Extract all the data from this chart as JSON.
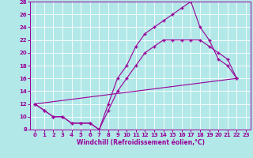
{
  "xlabel": "Windchill (Refroidissement éolien,°C)",
  "line_color": "#990099",
  "bg_color": "#b2e8e8",
  "grid_color": "#ffffff",
  "xlim": [
    -0.5,
    23.5
  ],
  "ylim": [
    8,
    28
  ],
  "xticks": [
    0,
    1,
    2,
    3,
    4,
    5,
    6,
    7,
    8,
    9,
    10,
    11,
    12,
    13,
    14,
    15,
    16,
    17,
    18,
    19,
    20,
    21,
    22,
    23
  ],
  "yticks": [
    8,
    10,
    12,
    14,
    16,
    18,
    20,
    22,
    24,
    26,
    28
  ],
  "line1_x": [
    0,
    1,
    2,
    3,
    4,
    5,
    6,
    7,
    8,
    9,
    10,
    11,
    12,
    13,
    14,
    15,
    16,
    17,
    18,
    19,
    20,
    21,
    22
  ],
  "line1_y": [
    12,
    11,
    10,
    10,
    9,
    9,
    9,
    8,
    12,
    16,
    18,
    21,
    23,
    24,
    25,
    26,
    27,
    28,
    24,
    22,
    19,
    18,
    16
  ],
  "line2_x": [
    0,
    1,
    2,
    3,
    4,
    5,
    6,
    7,
    8,
    9,
    10,
    11,
    12,
    13,
    14,
    15,
    16,
    17,
    18,
    19,
    20,
    21,
    22
  ],
  "line2_y": [
    12,
    11,
    10,
    10,
    9,
    9,
    9,
    8,
    11,
    14,
    16,
    18,
    20,
    21,
    22,
    22,
    22,
    22,
    22,
    21,
    20,
    19,
    16
  ],
  "line3_x": [
    0,
    22
  ],
  "line3_y": [
    12,
    16
  ]
}
